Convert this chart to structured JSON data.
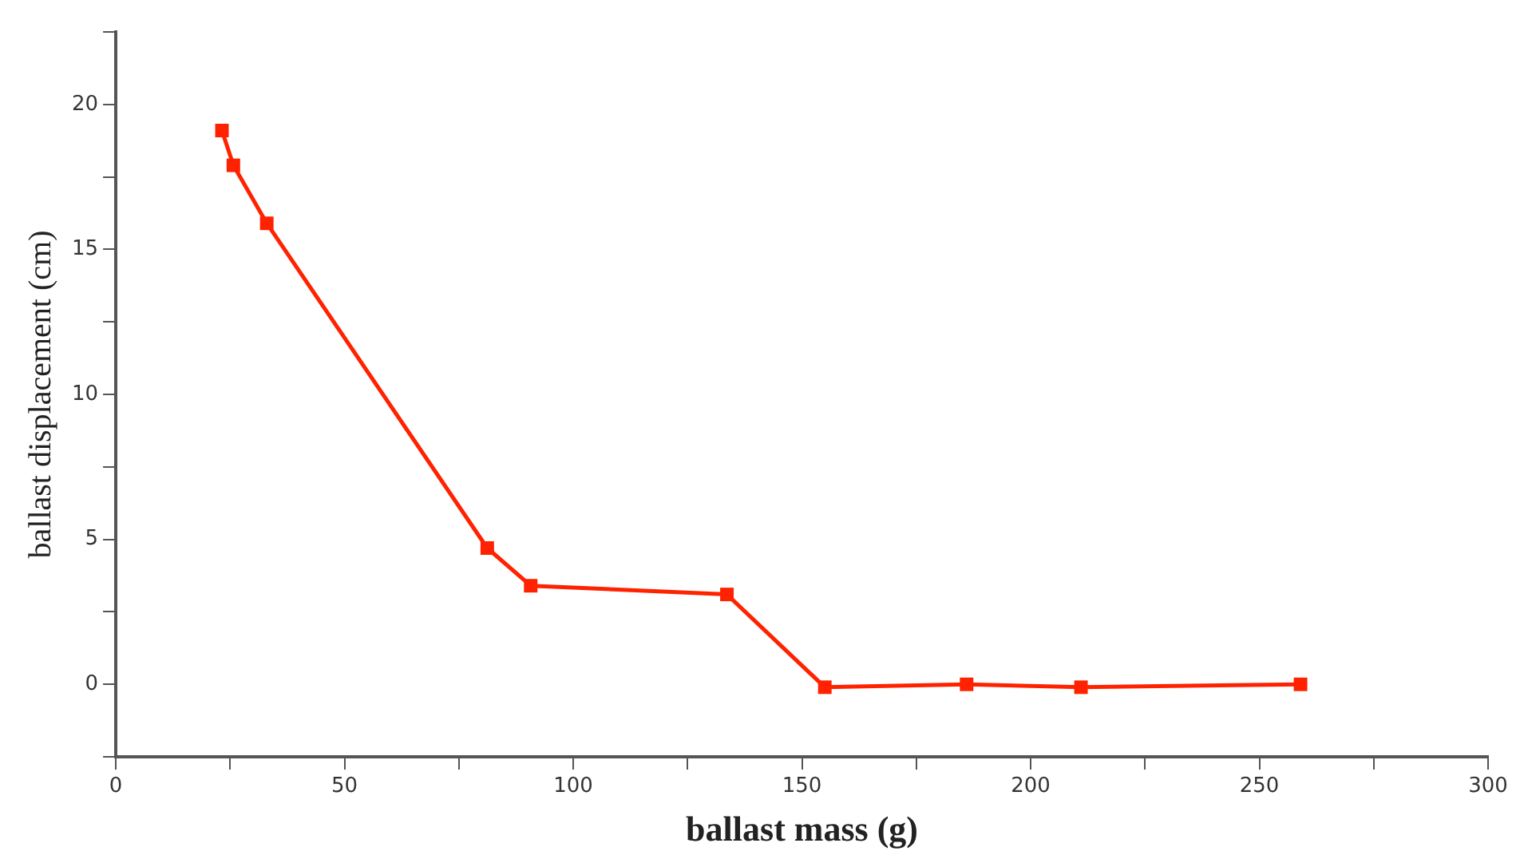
{
  "chart_data": {
    "type": "line",
    "xlabel": "ballast mass (g)",
    "ylabel": "ballast displacement (cm)",
    "x": [
      23.2,
      25.7,
      33,
      81.2,
      90.7,
      133.6,
      155,
      186,
      211,
      259
    ],
    "series": [
      {
        "color": "#ff2200",
        "values": [
          19.1,
          17.9,
          15.9,
          4.7,
          3.4,
          3.1,
          -0.1,
          0,
          -0.1,
          0
        ]
      }
    ],
    "xlim": [
      0,
      300
    ],
    "xticks": [
      0,
      {
        "value": 25,
        "label": null
      },
      50,
      {
        "value": 75,
        "label": null
      },
      100,
      {
        "value": 125,
        "label": null
      },
      150,
      {
        "value": 175,
        "label": null
      },
      200,
      {
        "value": 225,
        "label": null
      },
      250,
      {
        "value": 275,
        "label": null
      },
      300
    ],
    "ylim": [
      -2.5,
      22.5
    ],
    "yticks": [
      {
        "value": -2.5,
        "label": null
      },
      0,
      {
        "value": 2.5,
        "label": null
      },
      5,
      {
        "value": 7.5,
        "label": null
      },
      10,
      {
        "value": 12.5,
        "label": null
      },
      15,
      {
        "value": 17.5,
        "label": null
      },
      20,
      {
        "value": 22.5,
        "label": null
      }
    ],
    "marker": "square",
    "line_style": "solid",
    "grid": false,
    "legend": false
  }
}
